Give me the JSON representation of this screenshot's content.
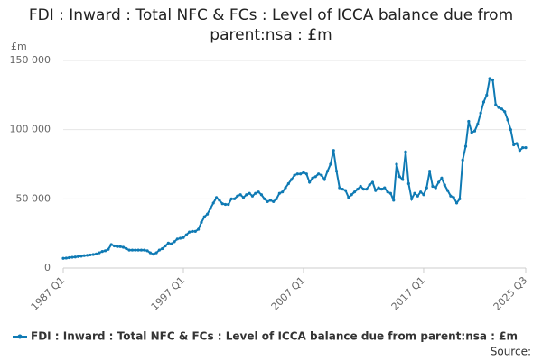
{
  "chart_data": {
    "type": "line",
    "title": "FDI : Inward : Total NFC & FCs : Level of ICCA balance due from parent:nsa : £m",
    "y_label": "£m",
    "source": "Source:",
    "categories": [
      "1987 Q1",
      null,
      null,
      null,
      null,
      null,
      null,
      null,
      null,
      null,
      null,
      null,
      null,
      null,
      null,
      null,
      null,
      null,
      null,
      null,
      null,
      null,
      null,
      null,
      null,
      null,
      null,
      null,
      null,
      null,
      null,
      null,
      null,
      null,
      null,
      null,
      null,
      null,
      null,
      null,
      "1997 Q1",
      null,
      null,
      null,
      null,
      null,
      null,
      null,
      null,
      null,
      null,
      null,
      null,
      null,
      null,
      null,
      null,
      null,
      null,
      null,
      null,
      null,
      null,
      null,
      null,
      null,
      null,
      null,
      null,
      null,
      null,
      null,
      null,
      null,
      null,
      null,
      null,
      null,
      null,
      null,
      "2007 Q1",
      null,
      null,
      null,
      null,
      null,
      null,
      null,
      null,
      null,
      null,
      null,
      null,
      null,
      null,
      null,
      null,
      null,
      null,
      null,
      null,
      null,
      null,
      null,
      null,
      null,
      null,
      null,
      null,
      null,
      null,
      null,
      null,
      null,
      null,
      null,
      null,
      null,
      null,
      null,
      "2017 Q1",
      null,
      null,
      null,
      null,
      null,
      null,
      null,
      null,
      null,
      null,
      null,
      null,
      null,
      null,
      null,
      null,
      null,
      null,
      null,
      null,
      null,
      null,
      null,
      null,
      null,
      null,
      null,
      null,
      null,
      null,
      null,
      null,
      null,
      "2025 Q3"
    ],
    "series": [
      {
        "name": "FDI : Inward : Total NFC & FCs : Level of ICCA balance due from parent:nsa : £m",
        "color": "#0f7ab4",
        "values": [
          7000,
          7200,
          7500,
          7800,
          8000,
          8300,
          8600,
          9000,
          9200,
          9500,
          9800,
          10200,
          11000,
          12000,
          12500,
          13500,
          17000,
          16000,
          15500,
          15500,
          15000,
          14000,
          13000,
          13000,
          13000,
          13000,
          13000,
          13000,
          12500,
          11000,
          10000,
          11000,
          13000,
          14000,
          16000,
          18000,
          17500,
          19000,
          21000,
          21500,
          22000,
          24000,
          26000,
          26500,
          26500,
          28000,
          33000,
          37000,
          39000,
          43000,
          47000,
          51000,
          49000,
          46500,
          46000,
          46000,
          50000,
          50000,
          52000,
          53000,
          51000,
          53000,
          54000,
          52000,
          54000,
          55000,
          53000,
          50000,
          48000,
          49000,
          48000,
          50000,
          54000,
          55000,
          58000,
          61000,
          64000,
          67000,
          68000,
          68000,
          69000,
          68000,
          62000,
          65000,
          66000,
          68000,
          67000,
          64000,
          70000,
          75000,
          85000,
          70000,
          58000,
          57000,
          56000,
          51000,
          53000,
          55000,
          57000,
          59000,
          57000,
          57000,
          60000,
          62000,
          56000,
          58000,
          57000,
          58000,
          55000,
          54000,
          49000,
          75000,
          66000,
          64000,
          84000,
          61000,
          50000,
          54000,
          52000,
          55000,
          53000,
          58000,
          70000,
          59000,
          58000,
          62000,
          65000,
          60000,
          56000,
          52000,
          51000,
          47000,
          50000,
          78000,
          88000,
          106000,
          98000,
          99000,
          104000,
          112000,
          120000,
          125000,
          137000,
          136000,
          118000,
          116000,
          115000,
          113000,
          107000,
          100000,
          89000,
          90000,
          85000,
          87000,
          87000
        ]
      }
    ],
    "ylim": [
      0,
      150000
    ],
    "yticks": [
      0,
      {
        "value": 50000,
        "label": "50 000"
      },
      {
        "value": 100000,
        "label": "100 000"
      },
      {
        "value": 150000,
        "label": "150 000"
      }
    ],
    "grid": true
  }
}
